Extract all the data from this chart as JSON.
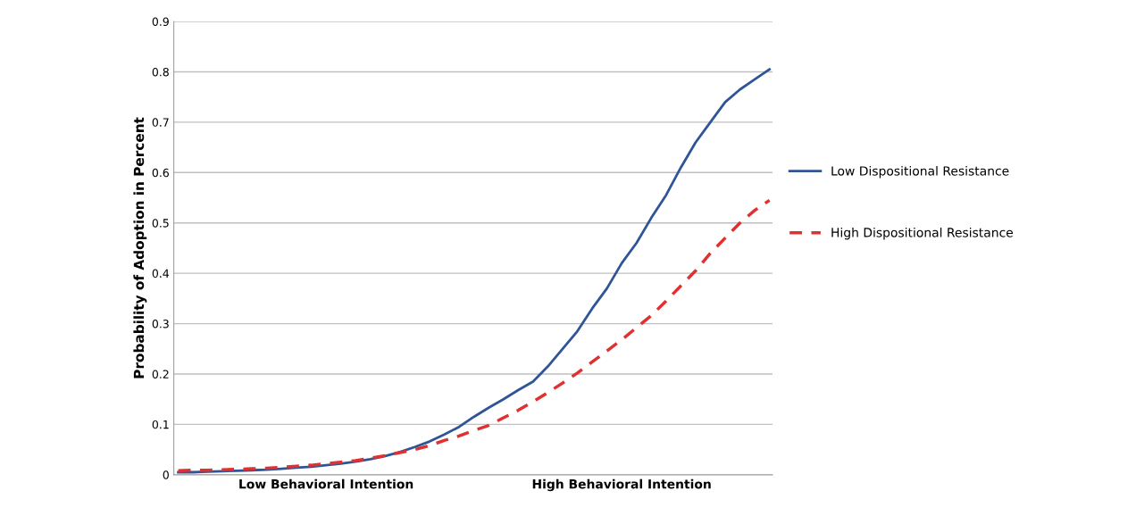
{
  "chart_data": {
    "type": "line",
    "ylabel": "Probability of Adoption in Percent",
    "categories": [
      null,
      null,
      null,
      null,
      null,
      null,
      null,
      null,
      null,
      null,
      "Low Behavioral Intention",
      null,
      null,
      null,
      null,
      null,
      null,
      null,
      null,
      null,
      null,
      null,
      null,
      null,
      null,
      null,
      null,
      null,
      null,
      null,
      "High Behavioral Intention",
      null,
      null,
      null,
      null,
      null,
      null,
      null,
      null,
      null,
      null
    ],
    "series": [
      {
        "name": "Low Dispositional Resistance",
        "color": "#2f5597",
        "line_style": "solid",
        "values": [
          0.005,
          0.005,
          0.006,
          0.007,
          0.008,
          0.009,
          0.01,
          0.012,
          0.014,
          0.016,
          0.019,
          0.022,
          0.026,
          0.031,
          0.037,
          0.045,
          0.055,
          0.066,
          0.08,
          0.095,
          0.115,
          0.133,
          0.15,
          0.168,
          0.185,
          0.215,
          0.25,
          0.285,
          0.33,
          0.37,
          0.42,
          0.46,
          0.51,
          0.555,
          0.61,
          0.66,
          0.7,
          0.74,
          0.765,
          0.785,
          0.805
        ]
      },
      {
        "name": "High Dispositional Resistance",
        "color": "#e03030",
        "line_style": "dashed",
        "values": [
          0.008,
          0.009,
          0.009,
          0.01,
          0.011,
          0.012,
          0.013,
          0.015,
          0.017,
          0.019,
          0.022,
          0.025,
          0.028,
          0.033,
          0.038,
          0.044,
          0.05,
          0.058,
          0.068,
          0.077,
          0.088,
          0.098,
          0.113,
          0.128,
          0.145,
          0.163,
          0.182,
          0.202,
          0.224,
          0.246,
          0.268,
          0.292,
          0.316,
          0.345,
          0.375,
          0.405,
          0.44,
          0.47,
          0.5,
          0.525,
          0.545
        ]
      }
    ],
    "ylim": [
      0,
      0.9
    ],
    "yticks": [
      0,
      0.1,
      0.2,
      0.3,
      0.4,
      0.5,
      0.6,
      0.7,
      0.8,
      0.9
    ],
    "grid": "y",
    "legend": "right",
    "marker": "none"
  }
}
